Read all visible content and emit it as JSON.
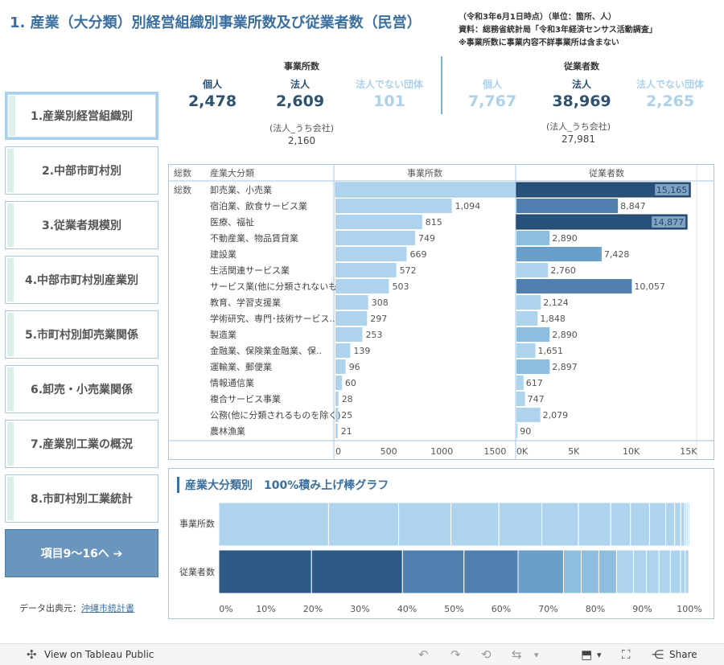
{
  "page": {
    "title": "1.  産業（大分類）別経営組織別事業所数及び従業者数（民営）",
    "notes": [
      "（令和3年6月1日時点）（単位：箇所、人）",
      "資料：総務省統計局「令和3年経済センサス活動調査」",
      "※事業所数に事業内容不詳事業所は含まない"
    ]
  },
  "kpis": {
    "establishments": {
      "header": "事業所数",
      "items": [
        {
          "label": "個人",
          "value": "2,478"
        },
        {
          "label": "法人",
          "value": "2,609"
        },
        {
          "label": "法人でない団体",
          "value": "101"
        }
      ],
      "sub_label": "(法人_うち会社)",
      "sub_value": "2,160"
    },
    "employees": {
      "header": "従業者数",
      "items": [
        {
          "label": "個人",
          "value": "7,767"
        },
        {
          "label": "法人",
          "value": "38,969"
        },
        {
          "label": "法人でない団体",
          "value": "2,265"
        }
      ],
      "sub_label": "(法人_うち会社)",
      "sub_value": "27,981"
    }
  },
  "nav": {
    "items": [
      "1.産業別経営組織別",
      "2.中部市町村別",
      "3.従業者規模別",
      "4.中部市町村別産業別",
      "5.市町村別卸売業関係",
      "6.卸売・小売業関係",
      "7.産業別工業の概況",
      "8.市町村別工業統計"
    ],
    "next": "項目9〜16へ ➔",
    "source_prefix": "データ出典元：",
    "source_link": "沖縄市統計書"
  },
  "chart_data": [
    {
      "type": "bar",
      "orientation": "horizontal",
      "header_total": "総数",
      "header_category": "産業大分類",
      "row_total_label": "総数",
      "categories": [
        "卸売業、小売業",
        "宿泊業、飲食サービス業",
        "医療、福祉",
        "不動産業、物品賃貸業",
        "建設業",
        "生活関連サービス業",
        "サービス業(他に分類されないも..",
        "教育、学習支援業",
        "学術研究、専門･技術サービス..",
        "製造業",
        "金融業、保険業金融業、保..",
        "運輸業、郵便業",
        "情報通信業",
        "複合サービス事業",
        "公務(他に分類されるものを除く)",
        "農林漁業"
      ],
      "series": [
        {
          "name": "事業所数",
          "values": [
            1712,
            1094,
            815,
            749,
            669,
            572,
            503,
            308,
            297,
            253,
            139,
            96,
            60,
            28,
            25,
            21
          ],
          "value_labels": [
            "1,712",
            "1,094",
            "815",
            "749",
            "669",
            "572",
            "503",
            "308",
            "297",
            "253",
            "139",
            "96",
            "60",
            "28",
            "25",
            "21"
          ],
          "xlim": [
            0,
            1800
          ],
          "ticks": [
            0,
            500,
            1000,
            1500
          ],
          "tick_labels": [
            "0",
            "500",
            "1000",
            "1500"
          ]
        },
        {
          "name": "従業者数",
          "values": [
            15165,
            8847,
            14877,
            2890,
            7428,
            2760,
            10057,
            2124,
            1848,
            2890,
            1651,
            2897,
            617,
            747,
            2079,
            90
          ],
          "value_labels": [
            "15,165",
            "8,847",
            "14,877",
            "2,890",
            "7,428",
            "2,760",
            "10,057",
            "2,124",
            "1,848",
            "2,890",
            "1,651",
            "2,897",
            "617",
            "747",
            "2,079",
            "90"
          ],
          "xlim": [
            0,
            15500
          ],
          "ticks": [
            0,
            5000,
            10000,
            15000
          ],
          "tick_labels": [
            "0K",
            "5K",
            "10K",
            "15K"
          ]
        }
      ],
      "colors": {
        "light": "#aed3ec",
        "mid_light": "#8ebedf",
        "mid": "#6a9fca",
        "mid_dark": "#4f80b0",
        "dark": "#2d5986",
        "darkest": "#27507a",
        "bar_outline": "#9ac4e3"
      }
    },
    {
      "type": "bar",
      "stacked": "percent",
      "title": "産業大分類別　100%積み上げ棒グラフ",
      "categories": [
        "事業所数",
        "従業者数"
      ],
      "segments": [
        "卸売業、小売業",
        "宿泊業、飲食サービス業",
        "医療、福祉",
        "不動産業、物品賃貸業",
        "建設業",
        "生活関連サービス業",
        "サービス業(他に分類されないも..",
        "教育、学習支援業",
        "学術研究、専門･技術サービス..",
        "製造業",
        "金融業、保険業金融業、保..",
        "運輸業、郵便業",
        "情報通信業",
        "複合サービス事業",
        "公務(他に分類されるものを除く)",
        "農林漁業"
      ],
      "order_establishments": [
        0,
        1,
        2,
        3,
        4,
        5,
        6,
        7,
        8,
        9,
        10,
        11,
        12,
        13,
        14,
        15
      ],
      "order_employees": [
        0,
        2,
        6,
        1,
        4,
        11,
        3,
        9,
        5,
        7,
        14,
        8,
        10,
        13,
        12,
        15
      ],
      "xlim": [
        0,
        100
      ],
      "ticks": [
        0,
        10,
        20,
        30,
        40,
        50,
        60,
        70,
        80,
        90,
        100
      ],
      "tick_labels": [
        "0%",
        "10%",
        "20%",
        "30%",
        "40%",
        "50%",
        "60%",
        "70%",
        "80%",
        "90%",
        "100%"
      ]
    }
  ],
  "footer": {
    "view_label": "View on Tableau Public",
    "share_label": "Share"
  }
}
